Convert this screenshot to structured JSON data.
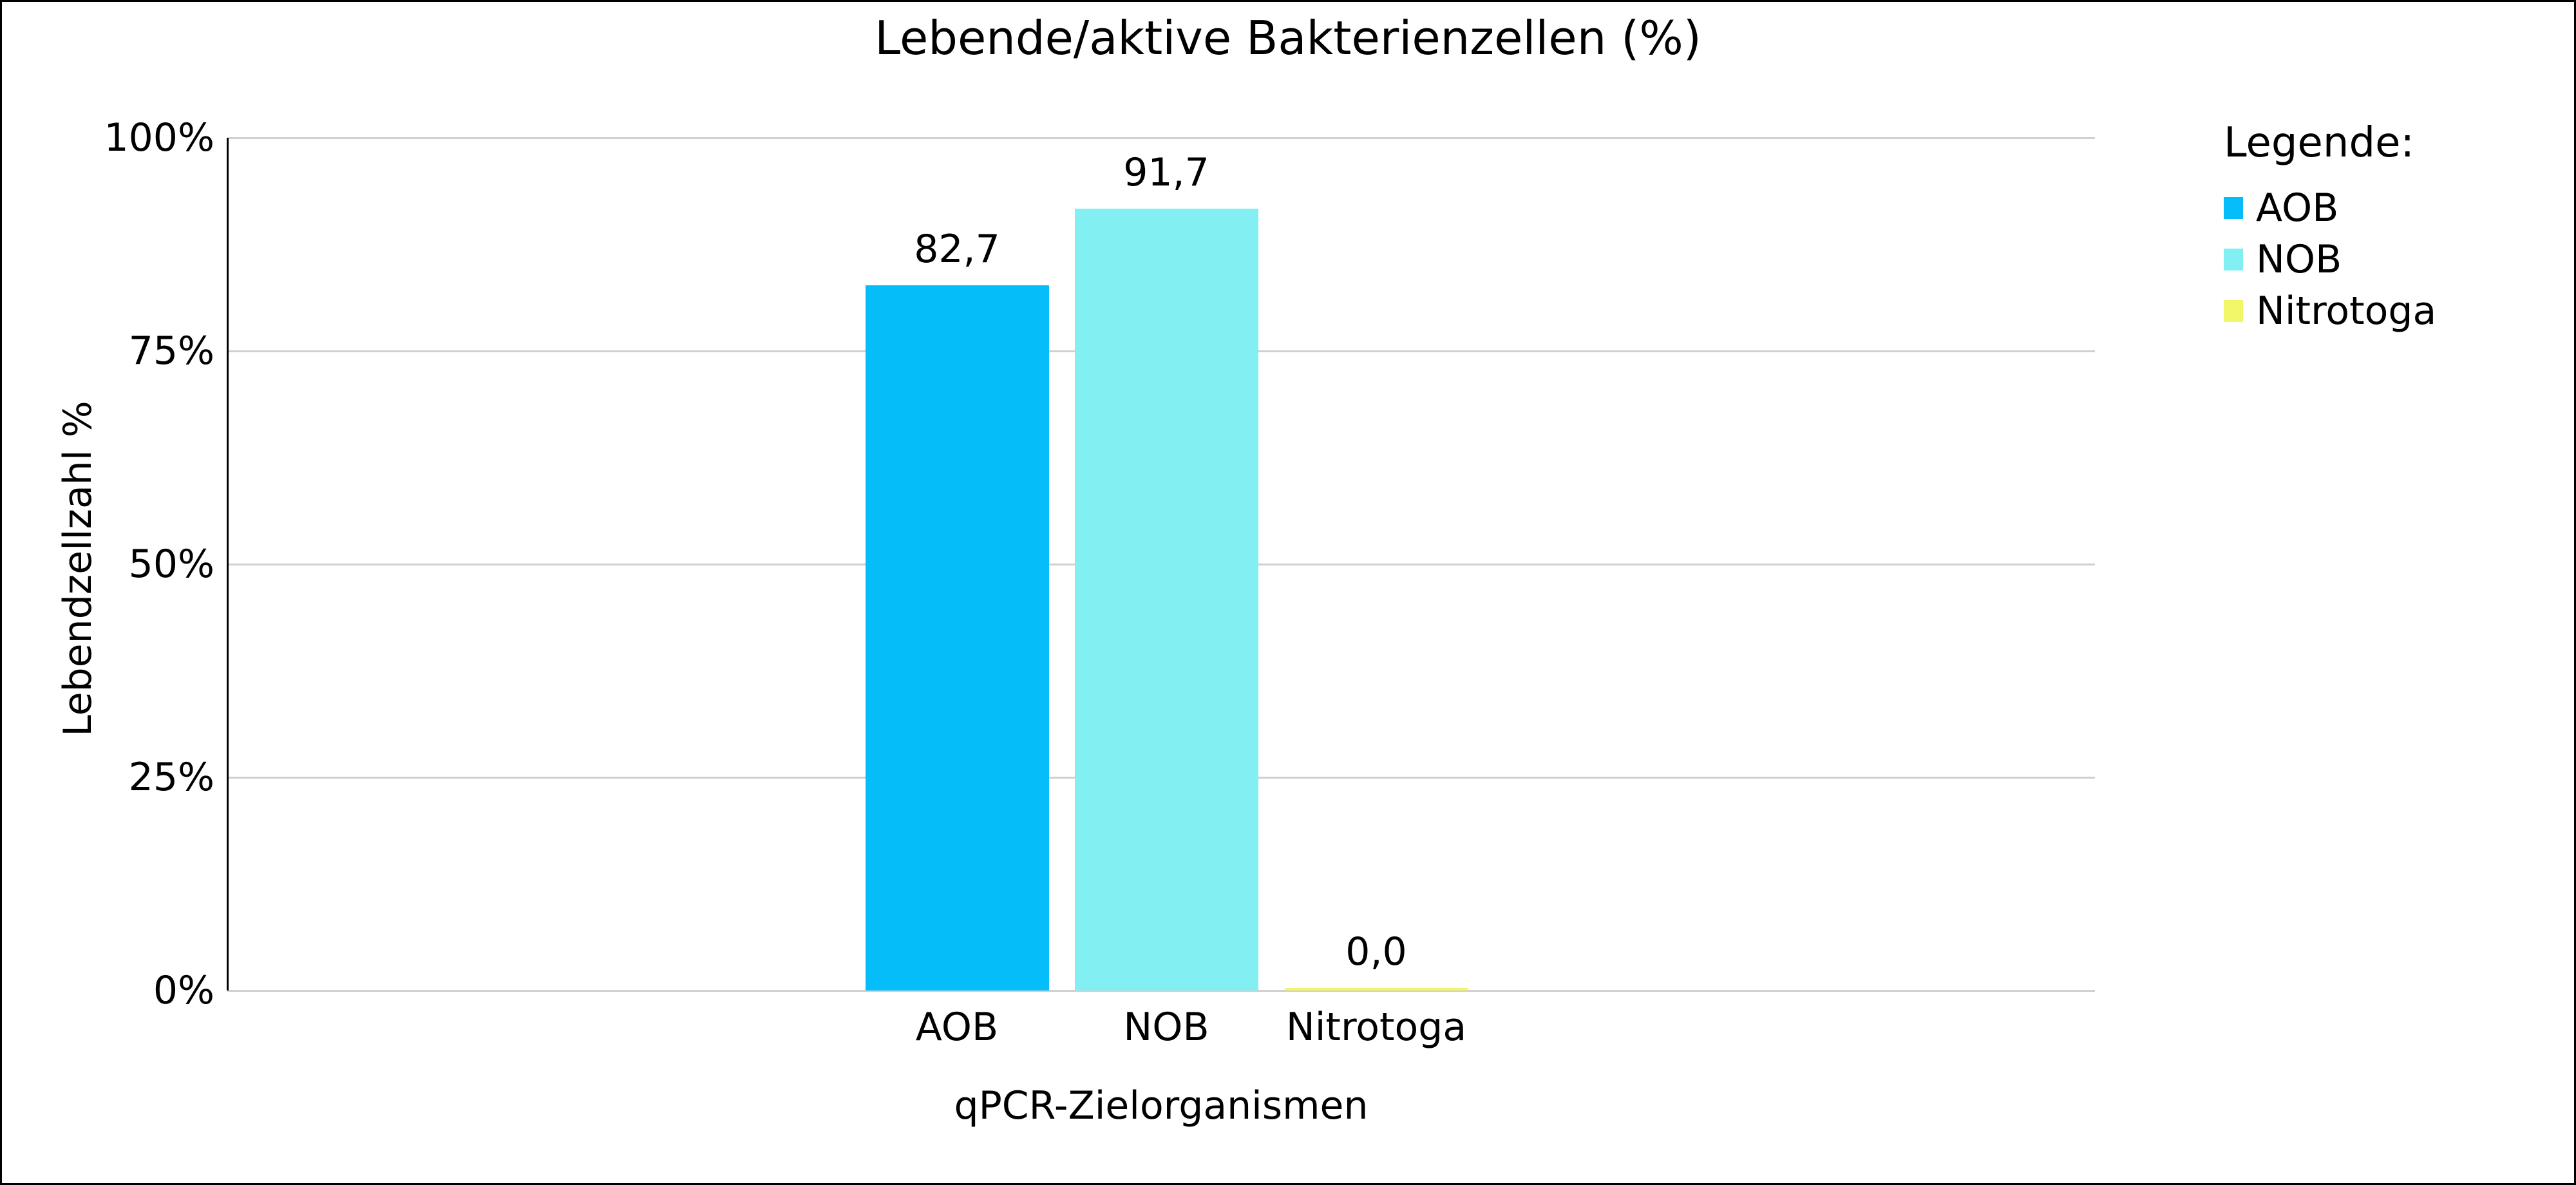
{
  "figure": {
    "background": "#FFFFFF",
    "border_color": "#000000"
  },
  "chart_data": {
    "type": "bar",
    "title": "Lebende/aktive Bakterienzellen (%)",
    "xlabel": "qPCR-Zielorganismen",
    "ylabel": "Lebendzellzahl %",
    "categories": [
      "AOB",
      "NOB",
      "Nitrotoga"
    ],
    "values": [
      82.7,
      91.7,
      0.0
    ],
    "value_labels": [
      "82,7",
      "91,7",
      "0,0"
    ],
    "bar_colors": [
      "#05BDF8",
      "#82F0F2",
      "#F2F669"
    ],
    "ylim": [
      0,
      100
    ],
    "yticks": [
      {
        "value": 0,
        "label": "0%"
      },
      {
        "value": 25,
        "label": "25%"
      },
      {
        "value": 50,
        "label": "50%"
      },
      {
        "value": 75,
        "label": "75%"
      },
      {
        "value": 100,
        "label": "100%"
      }
    ],
    "grid": "horizontal",
    "gridline_color": "#D0D0D0",
    "axis_color": "#000000",
    "text_color": "#000000",
    "legend": {
      "title": "Legende:",
      "position": "right",
      "items": [
        {
          "label": "AOB",
          "color": "#05BDF8"
        },
        {
          "label": "NOB",
          "color": "#82F0F2"
        },
        {
          "label": "Nitrotoga",
          "color": "#F2F669"
        }
      ]
    }
  }
}
